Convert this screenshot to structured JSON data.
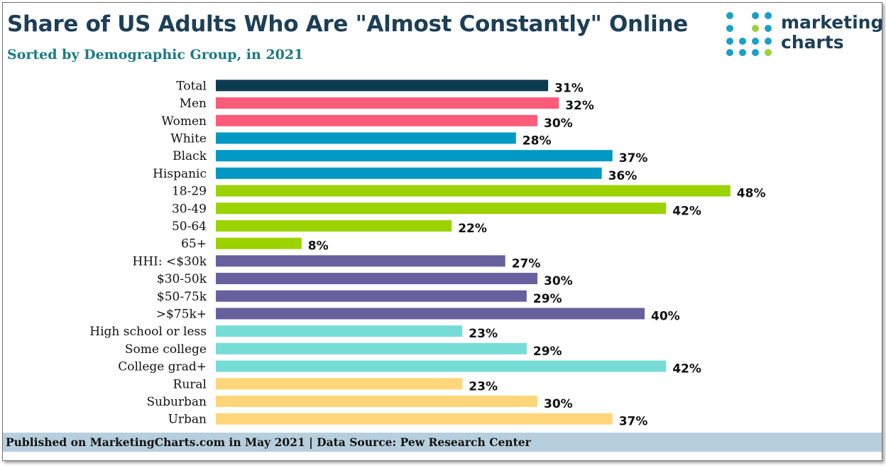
{
  "header": {
    "title": "Share of US Adults Who Are \"Almost Constantly\" Online",
    "subtitle": "Sorted by Demographic Group, in 2021"
  },
  "logo": {
    "line1": "marketing",
    "line2": "charts",
    "dot_colors": [
      "#1aa0c7",
      "#9bd23a",
      "#1d3f57"
    ]
  },
  "footer": {
    "text": "Published on MarketingCharts.com in May 2021 | Data Source: Pew Research Center"
  },
  "colors": {
    "total": "#0c3b51",
    "gender": "#fd5c78",
    "race": "#0099c4",
    "age": "#9bd200",
    "income": "#67609e",
    "education": "#75ddd6",
    "locale": "#ffd679"
  },
  "chart_data": {
    "type": "bar",
    "orientation": "horizontal",
    "unit": "%",
    "xlim": [
      0,
      50
    ],
    "grid": false,
    "legend": "none",
    "categories": [
      "Total",
      "Men",
      "Women",
      "White",
      "Black",
      "Hispanic",
      "18-29",
      "30-49",
      "50-64",
      "65+",
      "HHI: <$30k",
      "$30-50k",
      "$50-75k",
      ">$75k+",
      "High school or less",
      "Some college",
      "College grad+",
      "Rural",
      "Suburban",
      "Urban"
    ],
    "values": [
      31,
      32,
      30,
      28,
      37,
      36,
      48,
      42,
      22,
      8,
      27,
      30,
      29,
      40,
      23,
      29,
      42,
      23,
      30,
      37
    ],
    "value_labels": [
      "31%",
      "32%",
      "30%",
      "28%",
      "37%",
      "36%",
      "48%",
      "42%",
      "22%",
      "8%",
      "27%",
      "30%",
      "29%",
      "40%",
      "23%",
      "29%",
      "42%",
      "23%",
      "30%",
      "37%"
    ],
    "groups": [
      "total",
      "gender",
      "gender",
      "race",
      "race",
      "race",
      "age",
      "age",
      "age",
      "age",
      "income",
      "income",
      "income",
      "income",
      "education",
      "education",
      "education",
      "locale",
      "locale",
      "locale"
    ]
  }
}
